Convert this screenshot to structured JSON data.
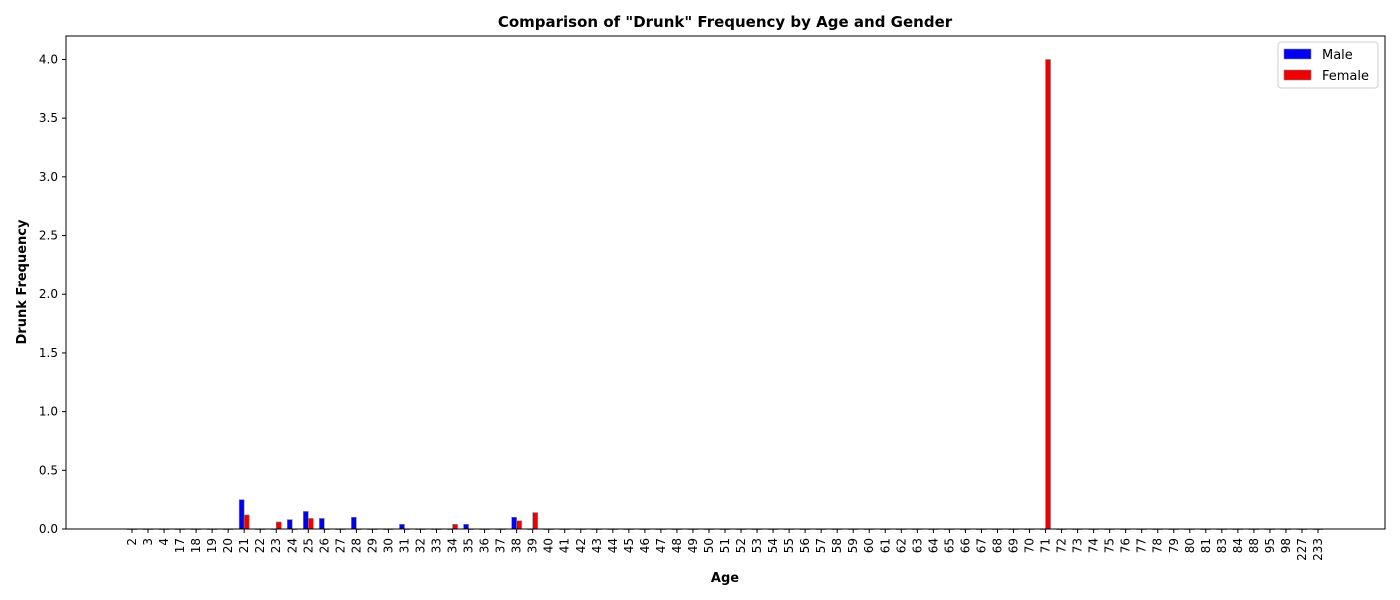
{
  "chart_data": {
    "type": "bar",
    "title": "Comparison of \"Drunk\" Frequency by Age and Gender",
    "xlabel": "Age",
    "ylabel": "Drunk Frequency",
    "ylim": [
      0,
      4.2
    ],
    "yticks": [
      "0.0",
      "0.5",
      "1.0",
      "1.5",
      "2.0",
      "2.5",
      "3.0",
      "3.5",
      "4.0"
    ],
    "legend_position": "top-right",
    "categories": [
      "2",
      "3",
      "4",
      "17",
      "18",
      "19",
      "20",
      "21",
      "22",
      "23",
      "24",
      "25",
      "26",
      "27",
      "28",
      "29",
      "30",
      "31",
      "32",
      "33",
      "34",
      "35",
      "36",
      "37",
      "38",
      "39",
      "40",
      "41",
      "42",
      "43",
      "44",
      "45",
      "46",
      "47",
      "48",
      "49",
      "50",
      "51",
      "52",
      "53",
      "54",
      "55",
      "56",
      "57",
      "58",
      "59",
      "60",
      "61",
      "62",
      "63",
      "64",
      "65",
      "66",
      "67",
      "68",
      "69",
      "70",
      "71",
      "72",
      "73",
      "74",
      "75",
      "76",
      "77",
      "78",
      "79",
      "80",
      "81",
      "83",
      "84",
      "88",
      "95",
      "98",
      "227",
      "233"
    ],
    "series": [
      {
        "name": "Male",
        "color": "#0000ee",
        "values": [
          0,
          0,
          0,
          0,
          0,
          0,
          0,
          0.25,
          0,
          0,
          0.08,
          0.15,
          0.09,
          0,
          0.1,
          0,
          0,
          0.04,
          0,
          0,
          0,
          0.04,
          0,
          0,
          0.1,
          0,
          0,
          0,
          0,
          0,
          0,
          0,
          0,
          0,
          0,
          0,
          0,
          0,
          0,
          0,
          0,
          0,
          0,
          0,
          0,
          0,
          0,
          0,
          0,
          0,
          0,
          0,
          0,
          0,
          0,
          0,
          0,
          0,
          0,
          0,
          0,
          0,
          0,
          0,
          0,
          0,
          0,
          0,
          0,
          0,
          0,
          0,
          0,
          0,
          0
        ]
      },
      {
        "name": "Female",
        "color": "#ee0000",
        "values": [
          0,
          0,
          0,
          0,
          0,
          0,
          0,
          0.12,
          0,
          0.06,
          0,
          0.09,
          0,
          0,
          0,
          0,
          0,
          0,
          0,
          0,
          0.04,
          0,
          0,
          0,
          0.07,
          0.14,
          0,
          0,
          0,
          0,
          0,
          0,
          0,
          0,
          0,
          0,
          0,
          0,
          0,
          0,
          0,
          0,
          0,
          0,
          0,
          0,
          0,
          0,
          0,
          0,
          0,
          0,
          0,
          0,
          0,
          0,
          0,
          4.0,
          0,
          0,
          0,
          0,
          0,
          0,
          0,
          0,
          0,
          0,
          0,
          0,
          0,
          0,
          0,
          0,
          0
        ]
      }
    ]
  }
}
